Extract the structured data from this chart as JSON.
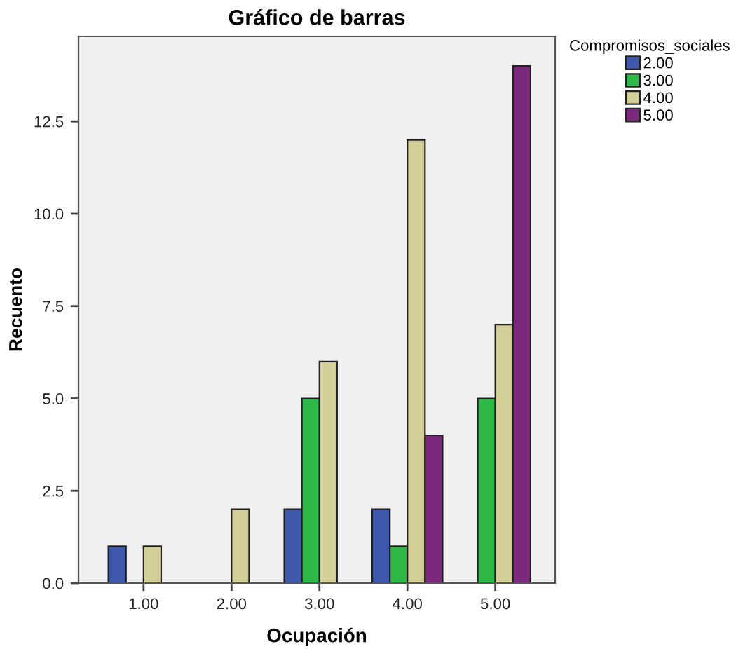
{
  "chart_data": {
    "type": "bar",
    "title": "Gráfico de barras",
    "xlabel": "Ocupación",
    "ylabel": "Recuento",
    "legend_title": "Compromisos_sociales",
    "categories": [
      "1.00",
      "2.00",
      "3.00",
      "4.00",
      "5.00"
    ],
    "series": [
      {
        "name": "2.00",
        "color": "#3e58ac",
        "values": [
          1,
          null,
          2,
          2,
          null
        ]
      },
      {
        "name": "3.00",
        "color": "#2eb848",
        "values": [
          null,
          null,
          5,
          1,
          5
        ]
      },
      {
        "name": "4.00",
        "color": "#d3ce97",
        "values": [
          1,
          2,
          6,
          12,
          7
        ]
      },
      {
        "name": "5.00",
        "color": "#7c287d",
        "values": [
          null,
          null,
          null,
          4,
          14
        ]
      }
    ],
    "ylim": [
      0,
      14.8
    ],
    "yticks": [
      {
        "value": 0,
        "label": "0.0"
      },
      {
        "value": 2.5,
        "label": "2.5"
      },
      {
        "value": 5,
        "label": "5.0"
      },
      {
        "value": 7.5,
        "label": "7.5"
      },
      {
        "value": 10,
        "label": "10.0"
      },
      {
        "value": 12.5,
        "label": "12.5"
      }
    ],
    "legend": "top right",
    "grid": false
  }
}
